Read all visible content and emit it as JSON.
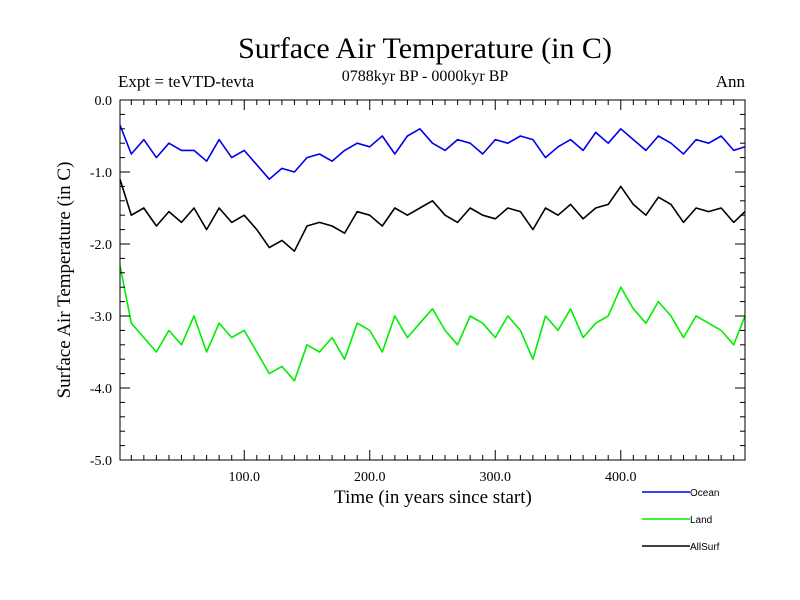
{
  "chart_data": {
    "type": "line",
    "title": "Surface Air Temperature (in C)",
    "subtitle": "0788kyr BP - 0000kyr BP",
    "left_annotation": "Expt = teVTD-tevta",
    "right_annotation": "Ann",
    "xlabel": "Time (in years since start)",
    "ylabel": "Surface Air Temperature (in C)",
    "xlim": [
      1,
      499
    ],
    "ylim": [
      -5.0,
      0.0
    ],
    "x_ticks": [
      {
        "value": 100,
        "label": "100.0"
      },
      {
        "value": 200,
        "label": "200.0"
      },
      {
        "value": 300,
        "label": "300.0"
      },
      {
        "value": 400,
        "label": "400.0"
      }
    ],
    "y_ticks": [
      {
        "value": 0.0,
        "label": "0.0"
      },
      {
        "value": -1.0,
        "label": "-1.0"
      },
      {
        "value": -2.0,
        "label": "-2.0"
      },
      {
        "value": -3.0,
        "label": "-3.0"
      },
      {
        "value": -4.0,
        "label": "-4.0"
      },
      {
        "value": -5.0,
        "label": "-5.0"
      }
    ],
    "legend_position": "bottom-right, below plot",
    "series": [
      {
        "name": "Ocean",
        "color": "#0000ee",
        "x": [
          1,
          10,
          20,
          30,
          40,
          50,
          60,
          70,
          80,
          90,
          100,
          110,
          120,
          130,
          140,
          150,
          160,
          170,
          180,
          190,
          200,
          210,
          220,
          230,
          240,
          250,
          260,
          270,
          280,
          290,
          300,
          310,
          320,
          330,
          340,
          350,
          360,
          370,
          380,
          390,
          400,
          410,
          420,
          430,
          440,
          450,
          460,
          470,
          480,
          490,
          499
        ],
        "values": [
          -0.35,
          -0.75,
          -0.55,
          -0.8,
          -0.6,
          -0.7,
          -0.7,
          -0.85,
          -0.55,
          -0.8,
          -0.7,
          -0.9,
          -1.1,
          -0.95,
          -1.0,
          -0.8,
          -0.75,
          -0.85,
          -0.7,
          -0.6,
          -0.65,
          -0.5,
          -0.75,
          -0.5,
          -0.4,
          -0.6,
          -0.7,
          -0.55,
          -0.6,
          -0.75,
          -0.55,
          -0.6,
          -0.5,
          -0.55,
          -0.8,
          -0.65,
          -0.55,
          -0.7,
          -0.45,
          -0.6,
          -0.4,
          -0.55,
          -0.7,
          -0.5,
          -0.6,
          -0.75,
          -0.55,
          -0.6,
          -0.5,
          -0.7,
          -0.65
        ]
      },
      {
        "name": "Land",
        "color": "#00ee00",
        "x": [
          1,
          10,
          20,
          30,
          40,
          50,
          60,
          70,
          80,
          90,
          100,
          110,
          120,
          130,
          140,
          150,
          160,
          170,
          180,
          190,
          200,
          210,
          220,
          230,
          240,
          250,
          260,
          270,
          280,
          290,
          300,
          310,
          320,
          330,
          340,
          350,
          360,
          370,
          380,
          390,
          400,
          410,
          420,
          430,
          440,
          450,
          460,
          470,
          480,
          490,
          499
        ],
        "values": [
          -2.3,
          -3.1,
          -3.3,
          -3.5,
          -3.2,
          -3.4,
          -3.0,
          -3.5,
          -3.1,
          -3.3,
          -3.2,
          -3.5,
          -3.8,
          -3.7,
          -3.9,
          -3.4,
          -3.5,
          -3.3,
          -3.6,
          -3.1,
          -3.2,
          -3.5,
          -3.0,
          -3.3,
          -3.1,
          -2.9,
          -3.2,
          -3.4,
          -3.0,
          -3.1,
          -3.3,
          -3.0,
          -3.2,
          -3.6,
          -3.0,
          -3.2,
          -2.9,
          -3.3,
          -3.1,
          -3.0,
          -2.6,
          -2.9,
          -3.1,
          -2.8,
          -3.0,
          -3.3,
          -3.0,
          -3.1,
          -3.2,
          -3.4,
          -3.0
        ]
      },
      {
        "name": "AllSurf",
        "color": "#000000",
        "x": [
          1,
          10,
          20,
          30,
          40,
          50,
          60,
          70,
          80,
          90,
          100,
          110,
          120,
          130,
          140,
          150,
          160,
          170,
          180,
          190,
          200,
          210,
          220,
          230,
          240,
          250,
          260,
          270,
          280,
          290,
          300,
          310,
          320,
          330,
          340,
          350,
          360,
          370,
          380,
          390,
          400,
          410,
          420,
          430,
          440,
          450,
          460,
          470,
          480,
          490,
          499
        ],
        "values": [
          -1.1,
          -1.6,
          -1.5,
          -1.75,
          -1.55,
          -1.7,
          -1.5,
          -1.8,
          -1.5,
          -1.7,
          -1.6,
          -1.8,
          -2.05,
          -1.95,
          -2.1,
          -1.75,
          -1.7,
          -1.75,
          -1.85,
          -1.55,
          -1.6,
          -1.75,
          -1.5,
          -1.6,
          -1.5,
          -1.4,
          -1.6,
          -1.7,
          -1.5,
          -1.6,
          -1.65,
          -1.5,
          -1.55,
          -1.8,
          -1.5,
          -1.6,
          -1.45,
          -1.65,
          -1.5,
          -1.45,
          -1.2,
          -1.45,
          -1.6,
          -1.35,
          -1.45,
          -1.7,
          -1.5,
          -1.55,
          -1.5,
          -1.7,
          -1.55
        ]
      }
    ]
  }
}
